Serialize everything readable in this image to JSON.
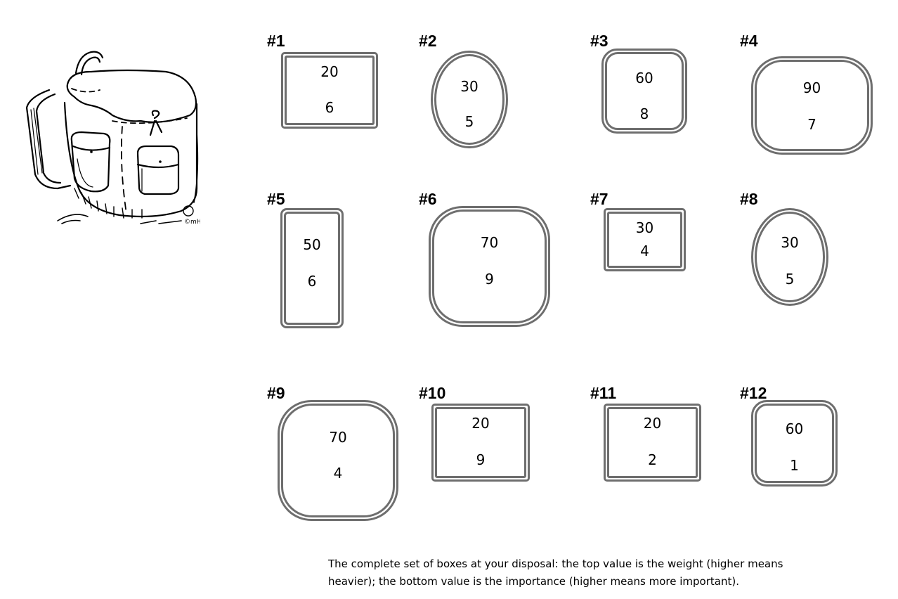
{
  "boxes": [
    {
      "label": "#1",
      "weight": "20",
      "importance": "6"
    },
    {
      "label": "#2",
      "weight": "30",
      "importance": "5"
    },
    {
      "label": "#3",
      "weight": "60",
      "importance": "8"
    },
    {
      "label": "#4",
      "weight": "90",
      "importance": "7"
    },
    {
      "label": "#5",
      "weight": "50",
      "importance": "6"
    },
    {
      "label": "#6",
      "weight": "70",
      "importance": "9"
    },
    {
      "label": "#7",
      "weight": "30",
      "importance": "4"
    },
    {
      "label": "#8",
      "weight": "30",
      "importance": "5"
    },
    {
      "label": "#9",
      "weight": "70",
      "importance": "4"
    },
    {
      "label": "#10",
      "weight": "20",
      "importance": "9"
    },
    {
      "label": "#11",
      "weight": "20",
      "importance": "2"
    },
    {
      "label": "#12",
      "weight": "60",
      "importance": "1"
    }
  ],
  "caption": "The complete set of boxes at your disposal: the top value is the weight (higher means heavier); the bottom value is the importance (higher means more important).",
  "backpack_signature": "©mH"
}
